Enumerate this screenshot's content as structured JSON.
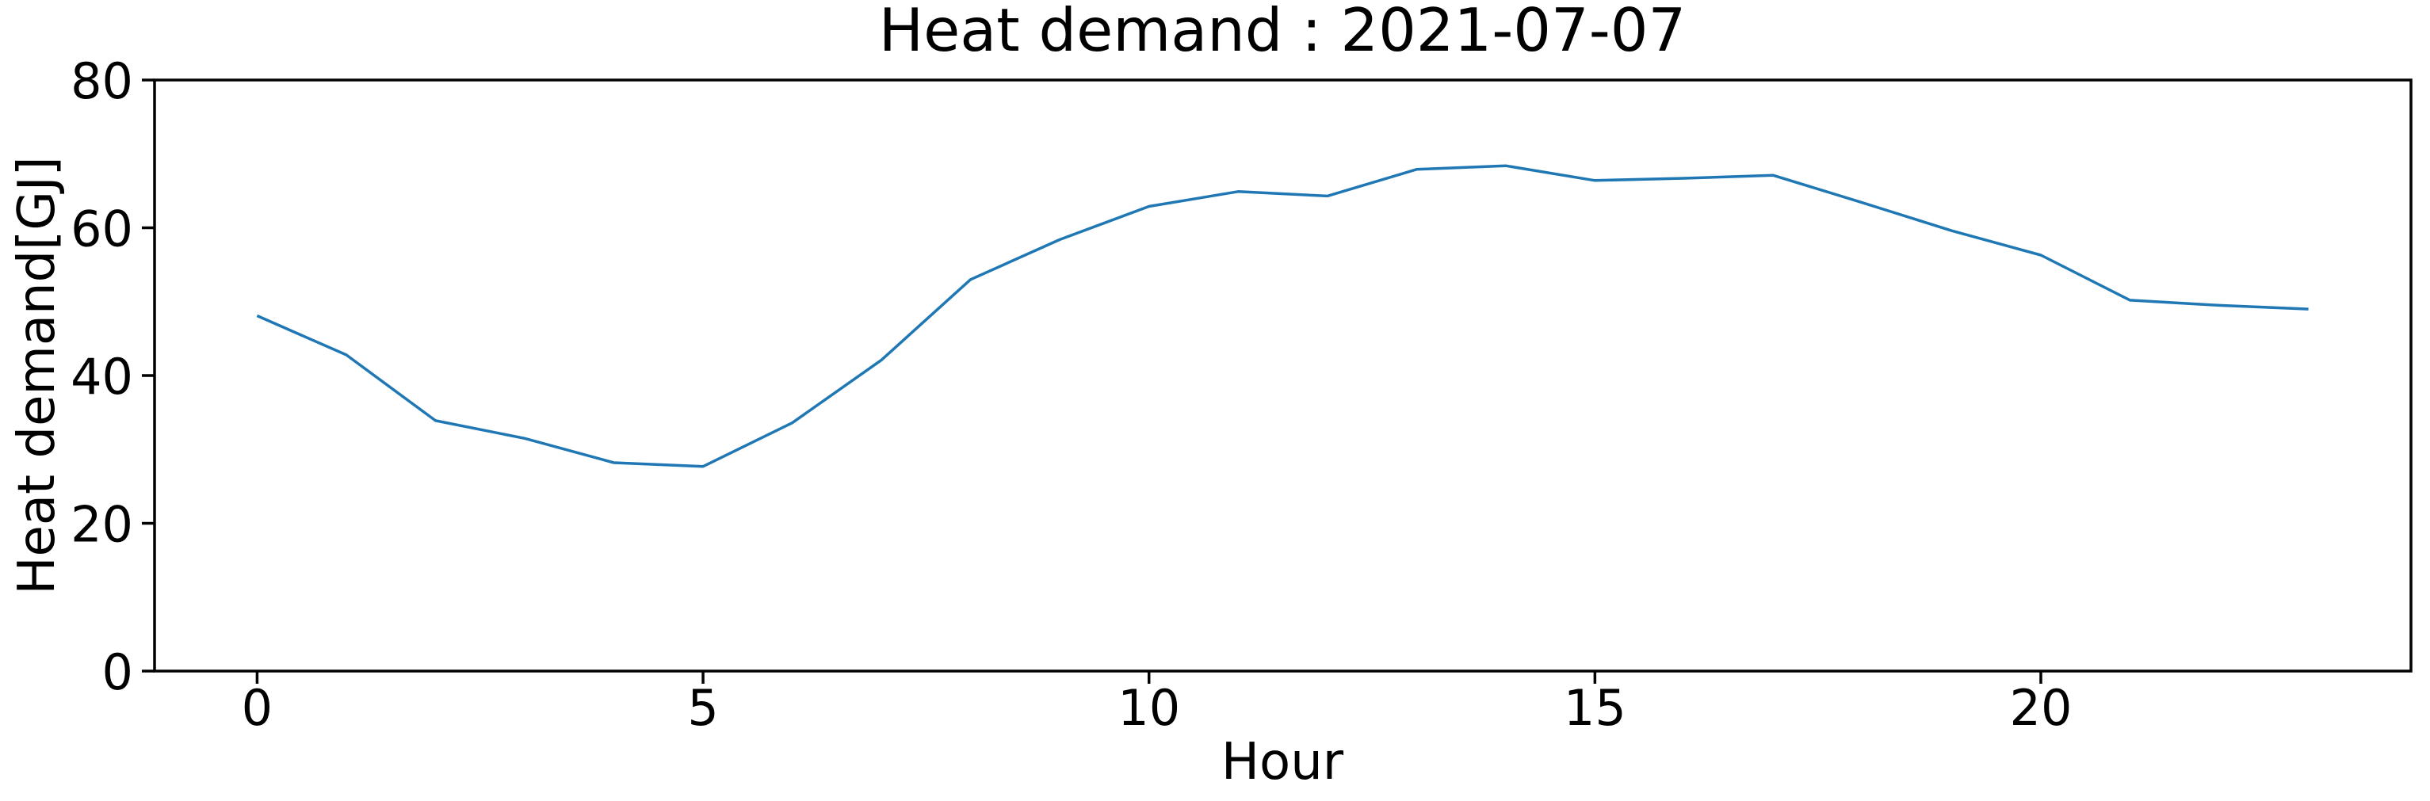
{
  "figure": {
    "background_color": "#ffffff"
  },
  "chart_data": {
    "type": "line",
    "title": "Heat demand : 2021-07-07",
    "xlabel": "Hour",
    "ylabel": "Heat demand[GJ]",
    "x": [
      0,
      1,
      2,
      3,
      4,
      5,
      6,
      7,
      8,
      9,
      10,
      11,
      12,
      13,
      14,
      15,
      16,
      17,
      18,
      19,
      20,
      21,
      22,
      23
    ],
    "series": [
      {
        "name": "heat-demand",
        "color": "#1f77b4",
        "values": [
          48.1,
          42.8,
          33.9,
          31.5,
          28.2,
          27.7,
          33.6,
          42.1,
          53.0,
          58.4,
          62.9,
          64.9,
          64.3,
          67.9,
          68.4,
          66.4,
          66.7,
          67.1,
          63.4,
          59.6,
          56.3,
          50.2,
          49.5,
          49.0
        ]
      }
    ],
    "xlim": [
      -1.15,
      24.15
    ],
    "ylim": [
      0,
      80
    ],
    "xticks": [
      0,
      5,
      10,
      15,
      20
    ],
    "yticks": [
      0,
      20,
      40,
      60,
      80
    ],
    "grid": false,
    "legend": false,
    "axis_color": "#000000",
    "text_color": "#000000"
  }
}
